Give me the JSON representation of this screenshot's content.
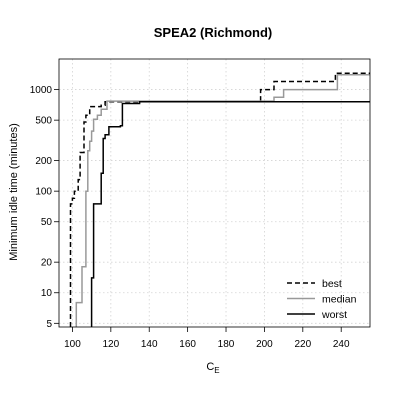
{
  "chart_data": {
    "type": "line",
    "title": "SPEA2 (Richmond)",
    "xlabel": "C",
    "xlabel_subscript": "E",
    "ylabel": "Minimum idle time (minutes)",
    "xlim": [
      93,
      255
    ],
    "ylim": [
      4.6,
      2000
    ],
    "y_scale": "log",
    "x_ticks": [
      100,
      120,
      140,
      160,
      180,
      200,
      220,
      240
    ],
    "y_ticks": [
      5,
      10,
      20,
      50,
      100,
      200,
      500,
      1000
    ],
    "grid": true,
    "legend_position": "bottom-right",
    "series": [
      {
        "name": "best",
        "color": "#000000",
        "dash": "dashed",
        "points": [
          [
            99,
            4.6
          ],
          [
            99,
            75
          ],
          [
            100,
            75
          ],
          [
            100,
            85
          ],
          [
            101,
            85
          ],
          [
            101,
            100
          ],
          [
            103,
            100
          ],
          [
            103,
            130
          ],
          [
            104,
            130
          ],
          [
            104,
            240
          ],
          [
            106,
            240
          ],
          [
            106,
            480
          ],
          [
            107,
            480
          ],
          [
            107,
            560
          ],
          [
            109,
            560
          ],
          [
            109,
            680
          ],
          [
            115,
            680
          ],
          [
            115,
            700
          ],
          [
            117,
            700
          ],
          [
            117,
            760
          ],
          [
            198,
            760
          ],
          [
            198,
            1000
          ],
          [
            205,
            1000
          ],
          [
            205,
            1200
          ],
          [
            237,
            1200
          ],
          [
            237,
            1450
          ],
          [
            255,
            1450
          ]
        ]
      },
      {
        "name": "median",
        "color": "#999999",
        "dash": "solid",
        "points": [
          [
            102,
            4.6
          ],
          [
            102,
            8
          ],
          [
            105,
            8
          ],
          [
            105,
            18
          ],
          [
            107,
            18
          ],
          [
            107,
            100
          ],
          [
            108,
            100
          ],
          [
            108,
            250
          ],
          [
            109,
            250
          ],
          [
            109,
            310
          ],
          [
            110,
            310
          ],
          [
            110,
            390
          ],
          [
            111,
            390
          ],
          [
            111,
            510
          ],
          [
            113,
            510
          ],
          [
            113,
            560
          ],
          [
            115,
            560
          ],
          [
            115,
            640
          ],
          [
            118,
            640
          ],
          [
            118,
            770
          ],
          [
            205,
            770
          ],
          [
            205,
            840
          ],
          [
            210,
            840
          ],
          [
            210,
            1000
          ],
          [
            238,
            1000
          ],
          [
            238,
            1400
          ],
          [
            255,
            1400
          ]
        ]
      },
      {
        "name": "worst",
        "color": "#000000",
        "dash": "solid",
        "points": [
          [
            110,
            4.6
          ],
          [
            110,
            14
          ],
          [
            111,
            14
          ],
          [
            111,
            75
          ],
          [
            115,
            75
          ],
          [
            115,
            150
          ],
          [
            116,
            150
          ],
          [
            116,
            330
          ],
          [
            117,
            330
          ],
          [
            117,
            360
          ],
          [
            119,
            360
          ],
          [
            119,
            430
          ],
          [
            125,
            430
          ],
          [
            125,
            440
          ],
          [
            126,
            440
          ],
          [
            126,
            730
          ],
          [
            135,
            730
          ],
          [
            135,
            760
          ],
          [
            255,
            760
          ]
        ]
      }
    ]
  }
}
